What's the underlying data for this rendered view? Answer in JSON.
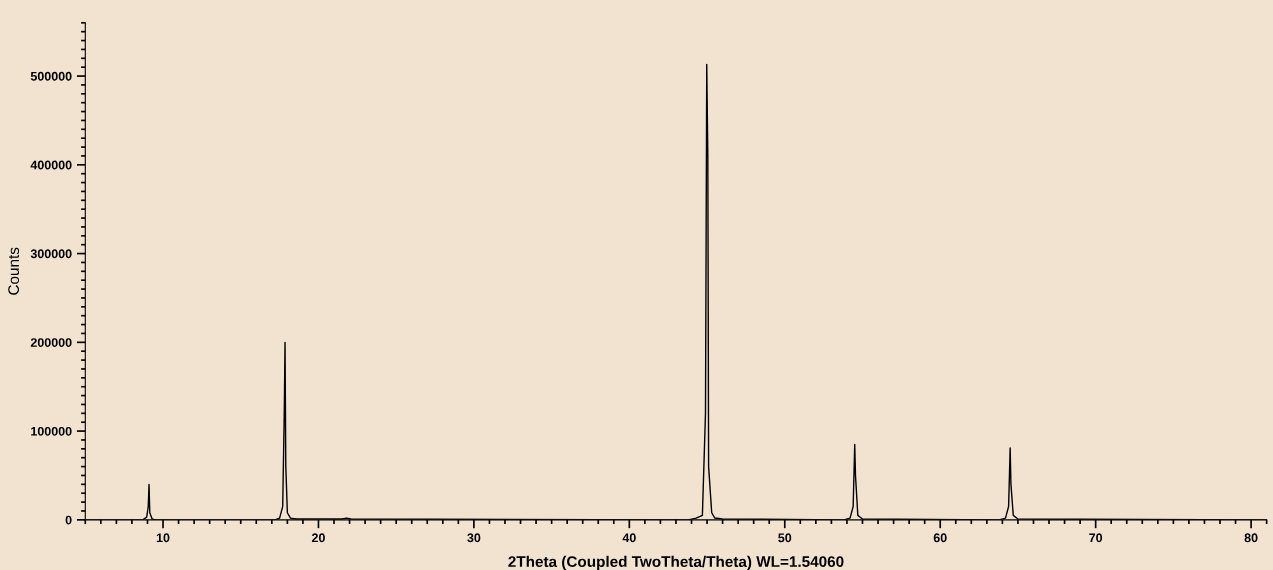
{
  "chart_data": {
    "type": "line",
    "xlabel": "2Theta (Coupled TwoTheta/Theta) WL=1.54060",
    "ylabel": "Counts",
    "x": [
      5,
      8.7,
      8.95,
      9.05,
      9.1,
      9.15,
      9.3,
      9.5,
      17.2,
      17.5,
      17.7,
      17.8,
      17.85,
      17.9,
      18.0,
      18.2,
      18.6,
      21.5,
      21.8,
      22.1,
      43.8,
      44.3,
      44.7,
      44.9,
      44.98,
      45.05,
      45.1,
      45.3,
      45.5,
      46,
      53.8,
      54.2,
      54.4,
      54.5,
      54.55,
      54.7,
      55,
      63.8,
      64.2,
      64.4,
      64.5,
      64.55,
      64.7,
      65,
      81
    ],
    "series": [
      {
        "color": "#000000",
        "values": [
          0,
          0,
          3000,
          15000,
          40000,
          8000,
          1000,
          0,
          0,
          2000,
          15000,
          120000,
          200000,
          60000,
          8000,
          2000,
          1000,
          1000,
          2000,
          1000,
          0,
          2000,
          5000,
          120000,
          513000,
          410000,
          60000,
          8000,
          2000,
          1000,
          0,
          2000,
          15000,
          85000,
          50000,
          5000,
          1000,
          0,
          2000,
          15000,
          81000,
          40000,
          5000,
          1000,
          0
        ]
      }
    ],
    "xlim": [
      5,
      81
    ],
    "ylim": [
      0,
      560000
    ],
    "xticks": [
      10,
      20,
      30,
      40,
      50,
      60,
      70,
      80
    ],
    "yticks": [
      0,
      100000,
      200000,
      300000,
      400000,
      500000
    ],
    "grid": false,
    "marker": "none",
    "line_style": "solid"
  }
}
